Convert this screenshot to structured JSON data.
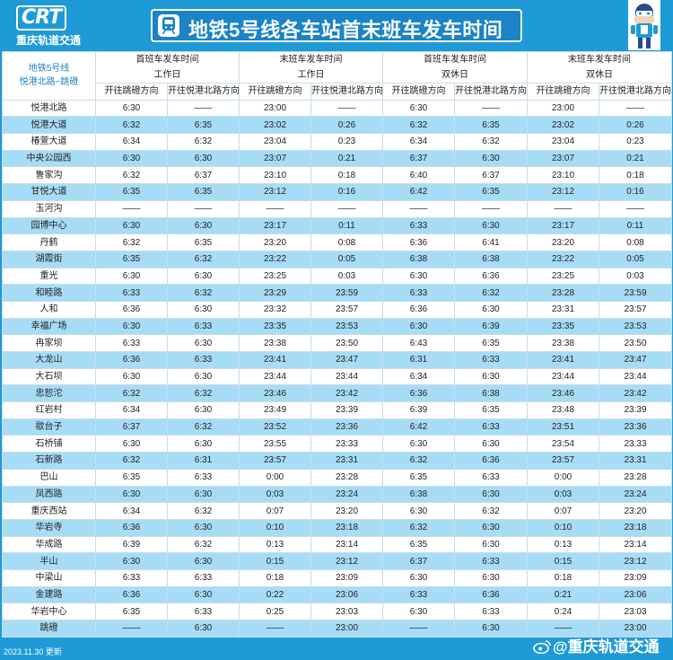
{
  "header": {
    "logo_mark": "CRT",
    "logo_name": "重庆轨道交通",
    "title": "地铁5号线各车站首末班车发车时间"
  },
  "table": {
    "corner_line1": "地铁5号线",
    "corner_line2": "悦港北路~跳磴",
    "groups": [
      {
        "line1": "首班车发车时间",
        "line2": "工作日"
      },
      {
        "line1": "末班车发车时间",
        "line2": "工作日"
      },
      {
        "line1": "首班车发车时间",
        "line2": "双休日"
      },
      {
        "line1": "末班车发车时间",
        "line2": "双休日"
      }
    ],
    "directions": [
      "开往跳磴方向",
      "开往悦港北路方向",
      "开往跳磴方向",
      "开往悦港北路方向",
      "开往跳磴方向",
      "开往悦港北路方向",
      "开往跳磴方向",
      "开往悦港北路方向"
    ],
    "rows": [
      [
        "悦港北路",
        "6:30",
        "——",
        "23:00",
        "——",
        "6:30",
        "——",
        "23:00",
        "——"
      ],
      [
        "悦港大道",
        "6:32",
        "6:35",
        "23:02",
        "0:26",
        "6:32",
        "6:35",
        "23:02",
        "0:26"
      ],
      [
        "椿萱大道",
        "6:34",
        "6:32",
        "23:04",
        "0:23",
        "6:34",
        "6:32",
        "23:04",
        "0:23"
      ],
      [
        "中央公园西",
        "6:30",
        "6:30",
        "23:07",
        "0:21",
        "6:37",
        "6:30",
        "23:07",
        "0:21"
      ],
      [
        "鲁家沟",
        "6:32",
        "6:37",
        "23:10",
        "0:18",
        "6:40",
        "6:37",
        "23:10",
        "0:18"
      ],
      [
        "甘悦大道",
        "6:35",
        "6:35",
        "23:12",
        "0:16",
        "6:42",
        "6:35",
        "23:12",
        "0:16"
      ],
      [
        "玉河沟",
        "——",
        "——",
        "——",
        "——",
        "——",
        "——",
        "——",
        "——"
      ],
      [
        "园博中心",
        "6:30",
        "6:30",
        "23:17",
        "0:11",
        "6:33",
        "6:30",
        "23:17",
        "0:11"
      ],
      [
        "丹鹤",
        "6:32",
        "6:35",
        "23:20",
        "0:08",
        "6:36",
        "6:41",
        "23:20",
        "0:08"
      ],
      [
        "湖霞街",
        "6:35",
        "6:32",
        "23:22",
        "0:05",
        "6:38",
        "6:38",
        "23:22",
        "0:05"
      ],
      [
        "重光",
        "6:30",
        "6:30",
        "23:25",
        "0:03",
        "6:30",
        "6:36",
        "23:25",
        "0:03"
      ],
      [
        "和睦路",
        "6:33",
        "6:32",
        "23:29",
        "23:59",
        "6:33",
        "6:32",
        "23:28",
        "23:59"
      ],
      [
        "人和",
        "6:36",
        "6:30",
        "23:32",
        "23:57",
        "6:36",
        "6:30",
        "23:31",
        "23:57"
      ],
      [
        "幸福广场",
        "6:30",
        "6:33",
        "23:35",
        "23:53",
        "6:30",
        "6:39",
        "23:35",
        "23:53"
      ],
      [
        "冉家坝",
        "6:33",
        "6:30",
        "23:38",
        "23:50",
        "6:43",
        "6:35",
        "23:38",
        "23:50"
      ],
      [
        "大龙山",
        "6:36",
        "6:33",
        "23:41",
        "23:47",
        "6:31",
        "6:33",
        "23:41",
        "23:47"
      ],
      [
        "大石坝",
        "6:30",
        "6:30",
        "23:44",
        "23:44",
        "6:34",
        "6:30",
        "23:44",
        "23:44"
      ],
      [
        "忠恕沱",
        "6:32",
        "6:32",
        "23:46",
        "23:42",
        "6:36",
        "6:38",
        "23:46",
        "23:42"
      ],
      [
        "红岩村",
        "6:34",
        "6:30",
        "23:49",
        "23:39",
        "6:39",
        "6:35",
        "23:48",
        "23:39"
      ],
      [
        "歇台子",
        "6:37",
        "6:32",
        "23:52",
        "23:36",
        "6:42",
        "6:33",
        "23:51",
        "23:36"
      ],
      [
        "石桥铺",
        "6:30",
        "6:30",
        "23:55",
        "23:33",
        "6:30",
        "6:30",
        "23:54",
        "23:33"
      ],
      [
        "石新路",
        "6:32",
        "6:31",
        "23:57",
        "23:31",
        "6:32",
        "6:36",
        "23:57",
        "23:31"
      ],
      [
        "巴山",
        "6:35",
        "6:33",
        "0:00",
        "23:28",
        "6:35",
        "6:33",
        "0:00",
        "23:28"
      ],
      [
        "凤西路",
        "6:30",
        "6:30",
        "0:03",
        "23:24",
        "6:38",
        "6:30",
        "0:03",
        "23:24"
      ],
      [
        "重庆西站",
        "6:34",
        "6:32",
        "0:07",
        "23:20",
        "6:30",
        "6:32",
        "0:07",
        "23:20"
      ],
      [
        "华岩寺",
        "6:36",
        "6:30",
        "0:10",
        "23:18",
        "6:32",
        "6:30",
        "0:10",
        "23:18"
      ],
      [
        "华成路",
        "6:39",
        "6:32",
        "0:13",
        "23:14",
        "6:35",
        "6:30",
        "0:13",
        "23:14"
      ],
      [
        "半山",
        "6:30",
        "6:30",
        "0:15",
        "23:12",
        "6:37",
        "6:33",
        "0:15",
        "23:12"
      ],
      [
        "中梁山",
        "6:33",
        "6:33",
        "0:18",
        "23:09",
        "6:30",
        "6:30",
        "0:18",
        "23:09"
      ],
      [
        "金建路",
        "6:36",
        "6:30",
        "0:22",
        "23:06",
        "6:33",
        "6:36",
        "0:21",
        "23:06"
      ],
      [
        "华岩中心",
        "6:35",
        "6:33",
        "0:25",
        "23:03",
        "6:30",
        "6:33",
        "0:24",
        "23:03"
      ],
      [
        "跳磴",
        "——",
        "6:30",
        "——",
        "23:00",
        "——",
        "6:30",
        "——",
        "23:00"
      ]
    ]
  },
  "footer": {
    "date": "2023.11.30 更新",
    "weibo": "@重庆轨道交通"
  }
}
